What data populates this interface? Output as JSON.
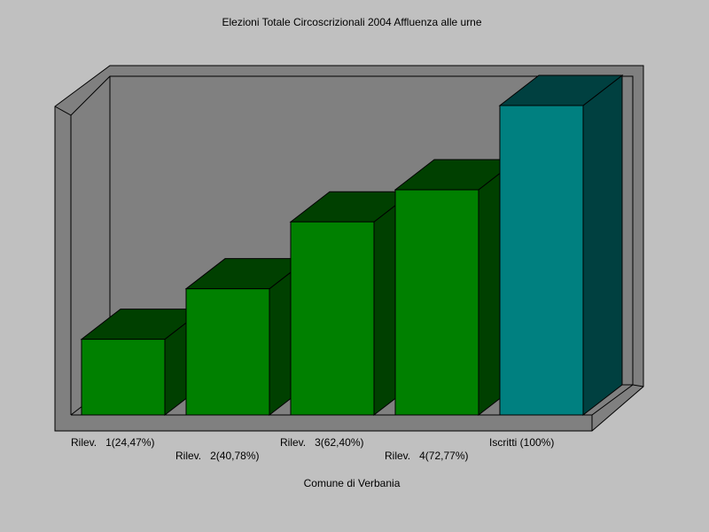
{
  "chart_data": {
    "type": "bar3d",
    "title": "Elezioni Totale Circoscrizionali 2004 Affluenza alle urne",
    "x_label": "Comune di Verbania",
    "categories": [
      "Rilev.   1(24,47%)",
      "Rilev.   2(40,78%)",
      "Rilev.   3(62,40%)",
      "Rilev.   4(72,77%)",
      "Iscritti (100%)"
    ],
    "values": [
      24.47,
      40.78,
      62.4,
      72.77,
      100
    ],
    "colors": [
      "#008000",
      "#008000",
      "#008000",
      "#008000",
      "#008080"
    ],
    "ylim": [
      0,
      100
    ]
  }
}
